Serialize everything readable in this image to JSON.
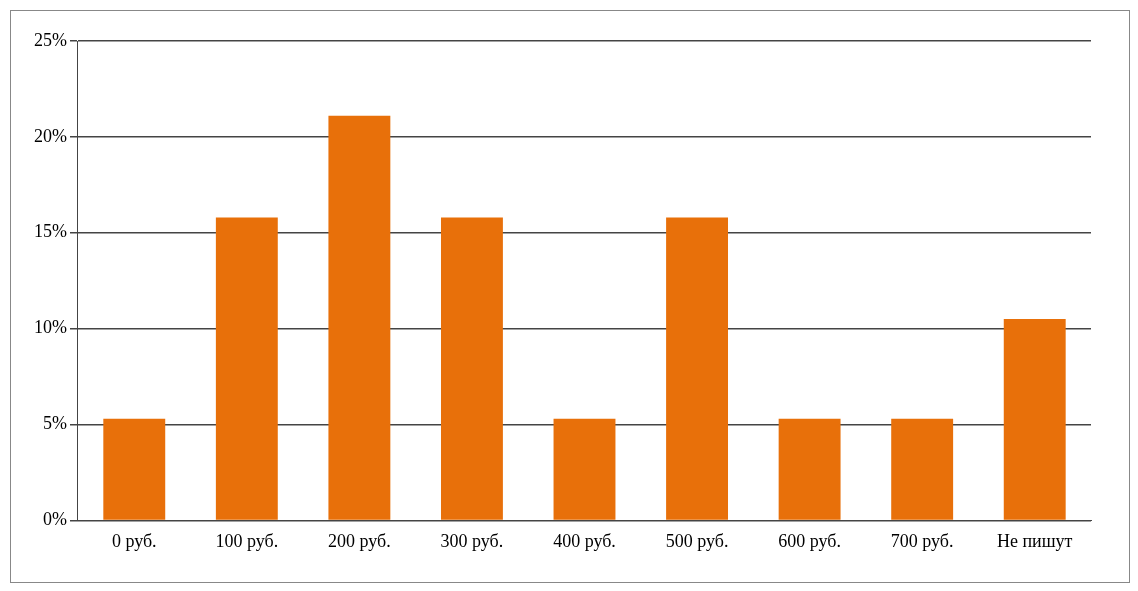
{
  "chart_data": {
    "type": "bar",
    "categories": [
      "0 руб.",
      "100 руб.",
      "200 руб.",
      "300 руб.",
      "400 руб.",
      "500 руб.",
      "600 руб.",
      "700 руб.",
      "Не пишут"
    ],
    "values": [
      5.3,
      15.8,
      21.1,
      15.8,
      5.3,
      15.8,
      5.3,
      5.3,
      10.5
    ],
    "color": "#e8700a",
    "ylim": [
      0,
      25
    ],
    "yticks": [
      {
        "value": 0,
        "label": "0%"
      },
      {
        "value": 5,
        "label": "5%"
      },
      {
        "value": 10,
        "label": "10%"
      },
      {
        "value": 15,
        "label": "15%"
      },
      {
        "value": 20,
        "label": "20%"
      },
      {
        "value": 25,
        "label": "25%"
      }
    ],
    "grid": "y",
    "legend": false
  }
}
